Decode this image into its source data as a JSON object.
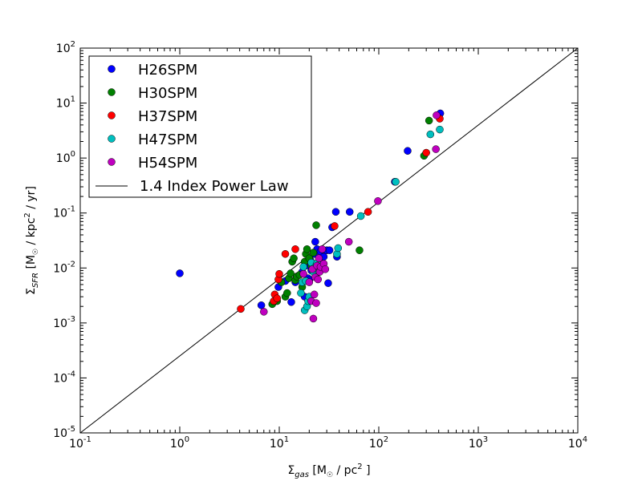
{
  "chart_data": {
    "type": "scatter",
    "title": "",
    "xscale": "log",
    "yscale": "log",
    "xlim": [
      0.1,
      10000
    ],
    "ylim": [
      1e-05,
      100
    ],
    "xticks": [
      {
        "base": "10",
        "exp": "-1"
      },
      {
        "base": "10",
        "exp": "0"
      },
      {
        "base": "10",
        "exp": "1"
      },
      {
        "base": "10",
        "exp": "2"
      },
      {
        "base": "10",
        "exp": "3"
      },
      {
        "base": "10",
        "exp": "4"
      }
    ],
    "yticks": [
      {
        "base": "10",
        "exp": "-5"
      },
      {
        "base": "10",
        "exp": "-4"
      },
      {
        "base": "10",
        "exp": "-3"
      },
      {
        "base": "10",
        "exp": "-2"
      },
      {
        "base": "10",
        "exp": "-1"
      },
      {
        "base": "10",
        "exp": "0"
      },
      {
        "base": "10",
        "exp": "1"
      },
      {
        "base": "10",
        "exp": "2"
      }
    ],
    "xlabel": {
      "sigma": "Σ",
      "sub": "gas",
      "pre": " [M",
      "sun": "☉",
      "mid": " / pc",
      "sup": "2",
      "post": " ]"
    },
    "ylabel": {
      "sigma": "Σ",
      "sub": "SFR",
      "pre": " [M",
      "sun": "☉",
      "mid": " / kpc",
      "sup": "2",
      "post": " / yr]"
    },
    "legend_position": "upper-left",
    "line": {
      "name": "1.4 Index Power Law",
      "x": [
        0.1,
        10000
      ],
      "y": [
        1e-05,
        100
      ],
      "color": "#000000"
    },
    "series": [
      {
        "name": "H26SPM",
        "color": "#0000ff",
        "points": [
          [
            1.0,
            0.008
          ],
          [
            6.6,
            0.0021
          ],
          [
            9.8,
            0.0045
          ],
          [
            11.5,
            0.0058
          ],
          [
            13.2,
            0.0024
          ],
          [
            14.5,
            0.0055
          ],
          [
            15.0,
            0.007
          ],
          [
            17.0,
            0.0085
          ],
          [
            18.0,
            0.003
          ],
          [
            18.5,
            0.011
          ],
          [
            19.5,
            0.0065
          ],
          [
            20.0,
            0.006
          ],
          [
            20.5,
            0.014
          ],
          [
            21.0,
            0.009
          ],
          [
            22.0,
            0.012
          ],
          [
            22.5,
            0.018
          ],
          [
            23.0,
            0.03
          ],
          [
            24.0,
            0.022
          ],
          [
            25.0,
            0.013
          ],
          [
            26.0,
            0.02
          ],
          [
            27.0,
            0.011
          ],
          [
            28.0,
            0.016
          ],
          [
            30.0,
            0.021
          ],
          [
            31.0,
            0.0053
          ],
          [
            32.0,
            0.021
          ],
          [
            34.0,
            0.055
          ],
          [
            37.0,
            0.105
          ],
          [
            38.0,
            0.016
          ],
          [
            51.0,
            0.105
          ],
          [
            145.0,
            0.37
          ],
          [
            195.0,
            1.35
          ],
          [
            415.0,
            6.5
          ]
        ]
      },
      {
        "name": "H30SPM",
        "color": "#008000",
        "points": [
          [
            8.5,
            0.0022
          ],
          [
            9.5,
            0.0025
          ],
          [
            10.5,
            0.0055
          ],
          [
            11.5,
            0.003
          ],
          [
            12.0,
            0.0035
          ],
          [
            12.5,
            0.0065
          ],
          [
            13.0,
            0.008
          ],
          [
            13.5,
            0.013
          ],
          [
            14.0,
            0.015
          ],
          [
            14.5,
            0.006
          ],
          [
            15.0,
            0.007
          ],
          [
            16.0,
            0.0075
          ],
          [
            17.0,
            0.0045
          ],
          [
            18.0,
            0.013
          ],
          [
            18.5,
            0.018
          ],
          [
            19.0,
            0.022
          ],
          [
            20.0,
            0.015
          ],
          [
            21.0,
            0.011
          ],
          [
            22.0,
            0.019
          ],
          [
            23.5,
            0.06
          ],
          [
            64.0,
            0.021
          ],
          [
            285.0,
            1.1
          ],
          [
            320.0,
            4.8
          ]
        ]
      },
      {
        "name": "H37SPM",
        "color": "#ff0000",
        "points": [
          [
            4.1,
            0.0018
          ],
          [
            8.8,
            0.0025
          ],
          [
            9.0,
            0.0033
          ],
          [
            9.5,
            0.0028
          ],
          [
            9.8,
            0.0062
          ],
          [
            10.0,
            0.0078
          ],
          [
            11.5,
            0.018
          ],
          [
            14.5,
            0.022
          ],
          [
            36.0,
            0.058
          ],
          [
            78.0,
            0.105
          ],
          [
            300.0,
            1.25
          ],
          [
            410.0,
            5.2
          ]
        ]
      },
      {
        "name": "H47SPM",
        "color": "#00bfbf",
        "points": [
          [
            16.5,
            0.0035
          ],
          [
            17.0,
            0.0055
          ],
          [
            17.5,
            0.0105
          ],
          [
            18.0,
            0.0017
          ],
          [
            18.5,
            0.0058
          ],
          [
            19.0,
            0.002
          ],
          [
            19.5,
            0.0025
          ],
          [
            20.0,
            0.003
          ],
          [
            21.0,
            0.0125
          ],
          [
            22.0,
            0.0085
          ],
          [
            23.0,
            0.0105
          ],
          [
            24.0,
            0.0122
          ],
          [
            25.0,
            0.0085
          ],
          [
            38.0,
            0.018
          ],
          [
            39.0,
            0.023
          ],
          [
            66.0,
            0.088
          ],
          [
            148.0,
            0.37
          ],
          [
            330.0,
            2.7
          ],
          [
            410.0,
            3.3
          ]
        ]
      },
      {
        "name": "H54SPM",
        "color": "#bf00bf",
        "points": [
          [
            7.0,
            0.0016
          ],
          [
            17.5,
            0.0078
          ],
          [
            20.0,
            0.0055
          ],
          [
            21.0,
            0.0025
          ],
          [
            21.5,
            0.0095
          ],
          [
            22.0,
            0.0012
          ],
          [
            22.5,
            0.0033
          ],
          [
            23.0,
            0.0068
          ],
          [
            23.5,
            0.0023
          ],
          [
            24.0,
            0.011
          ],
          [
            24.5,
            0.0062
          ],
          [
            25.0,
            0.015
          ],
          [
            25.5,
            0.0085
          ],
          [
            26.0,
            0.0105
          ],
          [
            27.0,
            0.022
          ],
          [
            28.0,
            0.012
          ],
          [
            29.0,
            0.0095
          ],
          [
            50.0,
            0.03
          ],
          [
            98.0,
            0.165
          ],
          [
            375.0,
            1.45
          ],
          [
            380.0,
            6.0
          ]
        ]
      }
    ]
  }
}
